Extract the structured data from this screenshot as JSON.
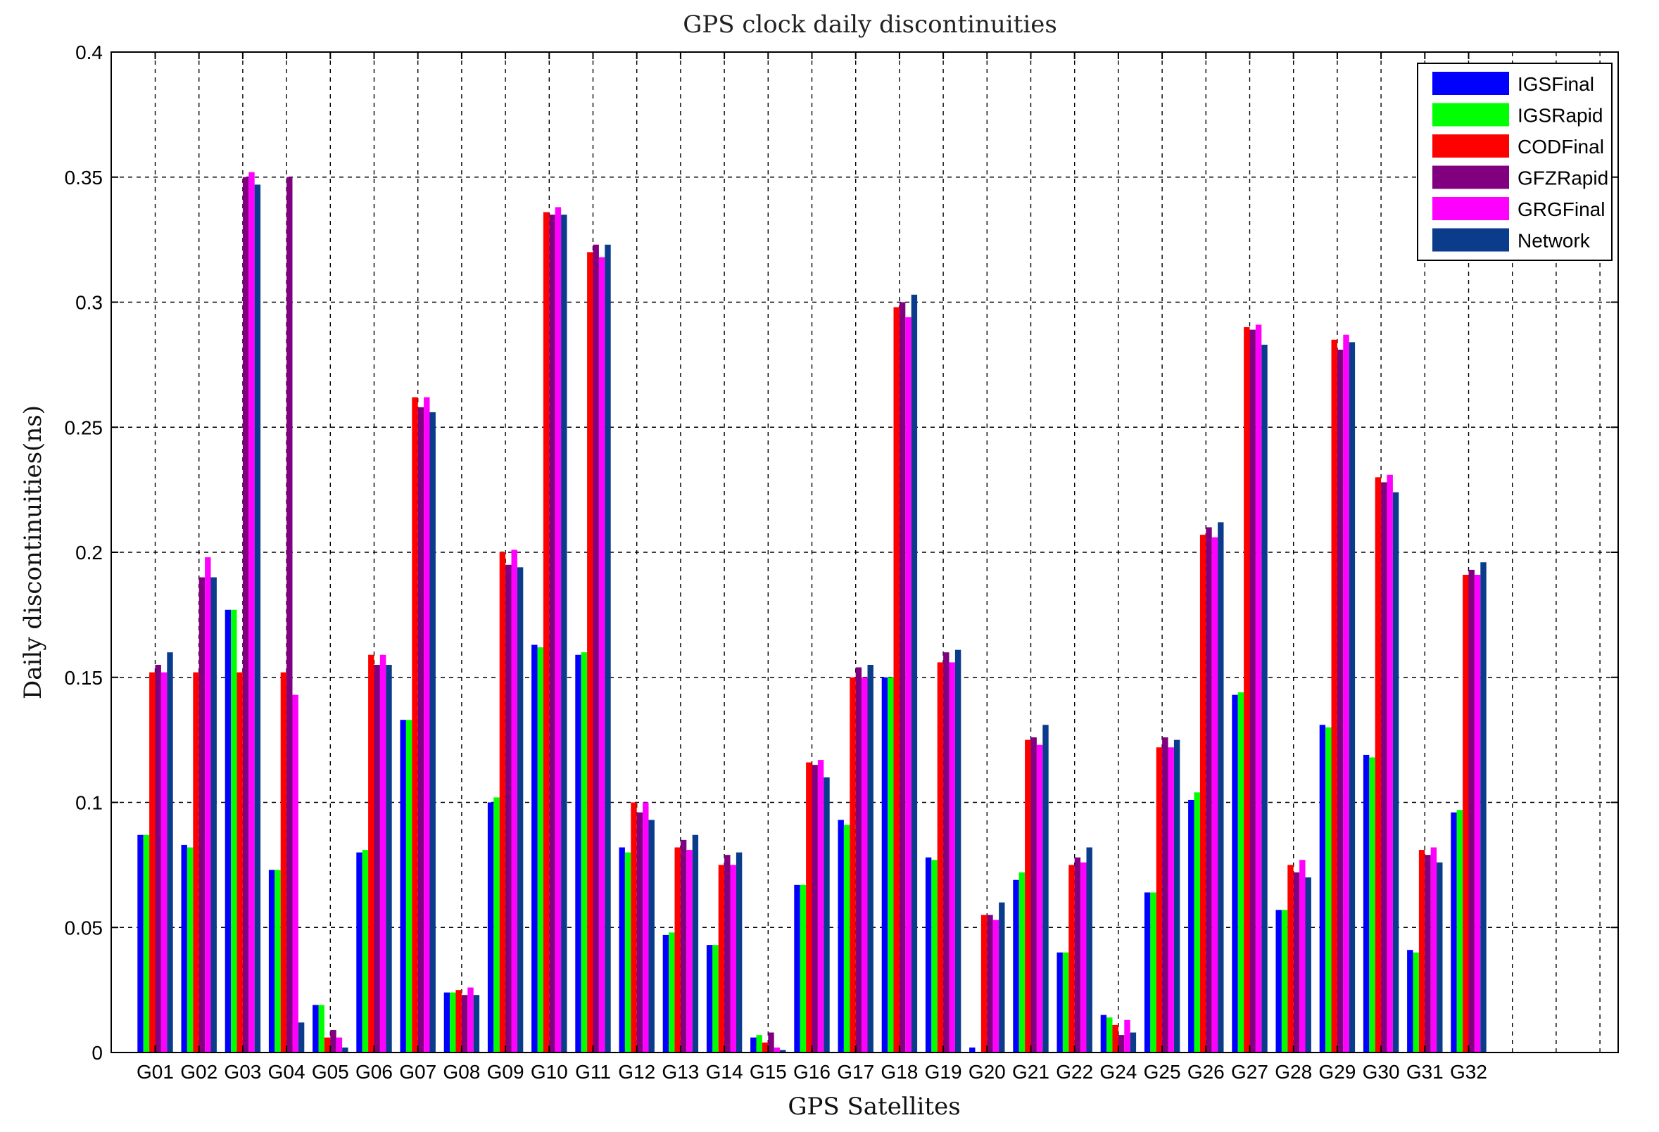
{
  "chart_data": {
    "type": "bar",
    "title": "GPS clock daily discontinuities",
    "xlabel": "GPS Satellites",
    "ylabel": "Daily discontinuities(ns)",
    "ylim": [
      0,
      0.4
    ],
    "yticks": [
      0,
      0.05,
      0.1,
      0.15,
      0.2,
      0.25,
      0.3,
      0.35,
      0.4
    ],
    "ytick_labels": [
      "0",
      "0.05",
      "0.1",
      "0.15",
      "0.2",
      "0.25",
      "0.3",
      "0.35",
      "0.4"
    ],
    "grid": true,
    "legend_position": "top-right",
    "categories": [
      "G01",
      "G02",
      "G03",
      "G04",
      "G05",
      "G06",
      "G07",
      "G08",
      "G09",
      "G10",
      "G11",
      "G12",
      "G13",
      "G14",
      "G15",
      "G16",
      "G17",
      "G18",
      "G19",
      "G20",
      "G21",
      "G22",
      "G24",
      "G25",
      "G26",
      "G27",
      "G28",
      "G29",
      "G30",
      "G31",
      "G32"
    ],
    "series": [
      {
        "name": "IGSFinal",
        "color": "#0000ff",
        "values": [
          0.087,
          0.083,
          0.177,
          0.073,
          0.019,
          0.08,
          0.133,
          0.024,
          0.1,
          0.163,
          0.159,
          0.082,
          0.047,
          0.043,
          0.006,
          0.067,
          0.093,
          0.15,
          0.078,
          0.002,
          0.069,
          0.04,
          0.015,
          0.064,
          0.101,
          0.143,
          0.057,
          0.131,
          0.119,
          0.041,
          0.096
        ]
      },
      {
        "name": "IGSRapid",
        "color": "#00ff00",
        "values": [
          0.087,
          0.082,
          0.177,
          0.073,
          0.019,
          0.081,
          0.133,
          0.024,
          0.102,
          0.162,
          0.16,
          0.08,
          0.048,
          0.043,
          0.007,
          0.067,
          0.091,
          0.15,
          0.077,
          0.0,
          0.072,
          0.04,
          0.014,
          0.064,
          0.104,
          0.144,
          0.057,
          0.13,
          0.118,
          0.04,
          0.097
        ]
      },
      {
        "name": "CODFinal",
        "color": "#ff0000",
        "values": [
          0.152,
          0.152,
          0.152,
          0.152,
          0.006,
          0.159,
          0.262,
          0.025,
          0.2,
          0.336,
          0.32,
          0.1,
          0.082,
          0.075,
          0.004,
          0.116,
          0.15,
          0.298,
          0.156,
          0.055,
          0.125,
          0.075,
          0.011,
          0.122,
          0.207,
          0.29,
          0.075,
          0.285,
          0.23,
          0.081,
          0.191
        ]
      },
      {
        "name": "GFZRapid",
        "color": "#800080",
        "values": [
          0.155,
          0.19,
          0.35,
          0.35,
          0.009,
          0.155,
          0.258,
          0.023,
          0.195,
          0.335,
          0.323,
          0.096,
          0.085,
          0.079,
          0.008,
          0.115,
          0.154,
          0.3,
          0.16,
          0.055,
          0.126,
          0.078,
          0.007,
          0.126,
          0.21,
          0.289,
          0.072,
          0.281,
          0.228,
          0.079,
          0.193
        ]
      },
      {
        "name": "GRGFinal",
        "color": "#ff00ff",
        "values": [
          0.152,
          0.198,
          0.352,
          0.143,
          0.006,
          0.159,
          0.262,
          0.026,
          0.201,
          0.338,
          0.318,
          0.1,
          0.081,
          0.075,
          0.002,
          0.117,
          0.15,
          0.294,
          0.156,
          0.053,
          0.123,
          0.076,
          0.013,
          0.122,
          0.206,
          0.291,
          0.077,
          0.287,
          0.231,
          0.082,
          0.191
        ]
      },
      {
        "name": "Network",
        "color": "#0b3c8c",
        "values": [
          0.16,
          0.19,
          0.347,
          0.012,
          0.002,
          0.155,
          0.256,
          0.023,
          0.194,
          0.335,
          0.323,
          0.093,
          0.087,
          0.08,
          0.001,
          0.11,
          0.155,
          0.303,
          0.161,
          0.06,
          0.131,
          0.082,
          0.008,
          0.125,
          0.212,
          0.283,
          0.07,
          0.284,
          0.224,
          0.076,
          0.196
        ]
      }
    ]
  }
}
